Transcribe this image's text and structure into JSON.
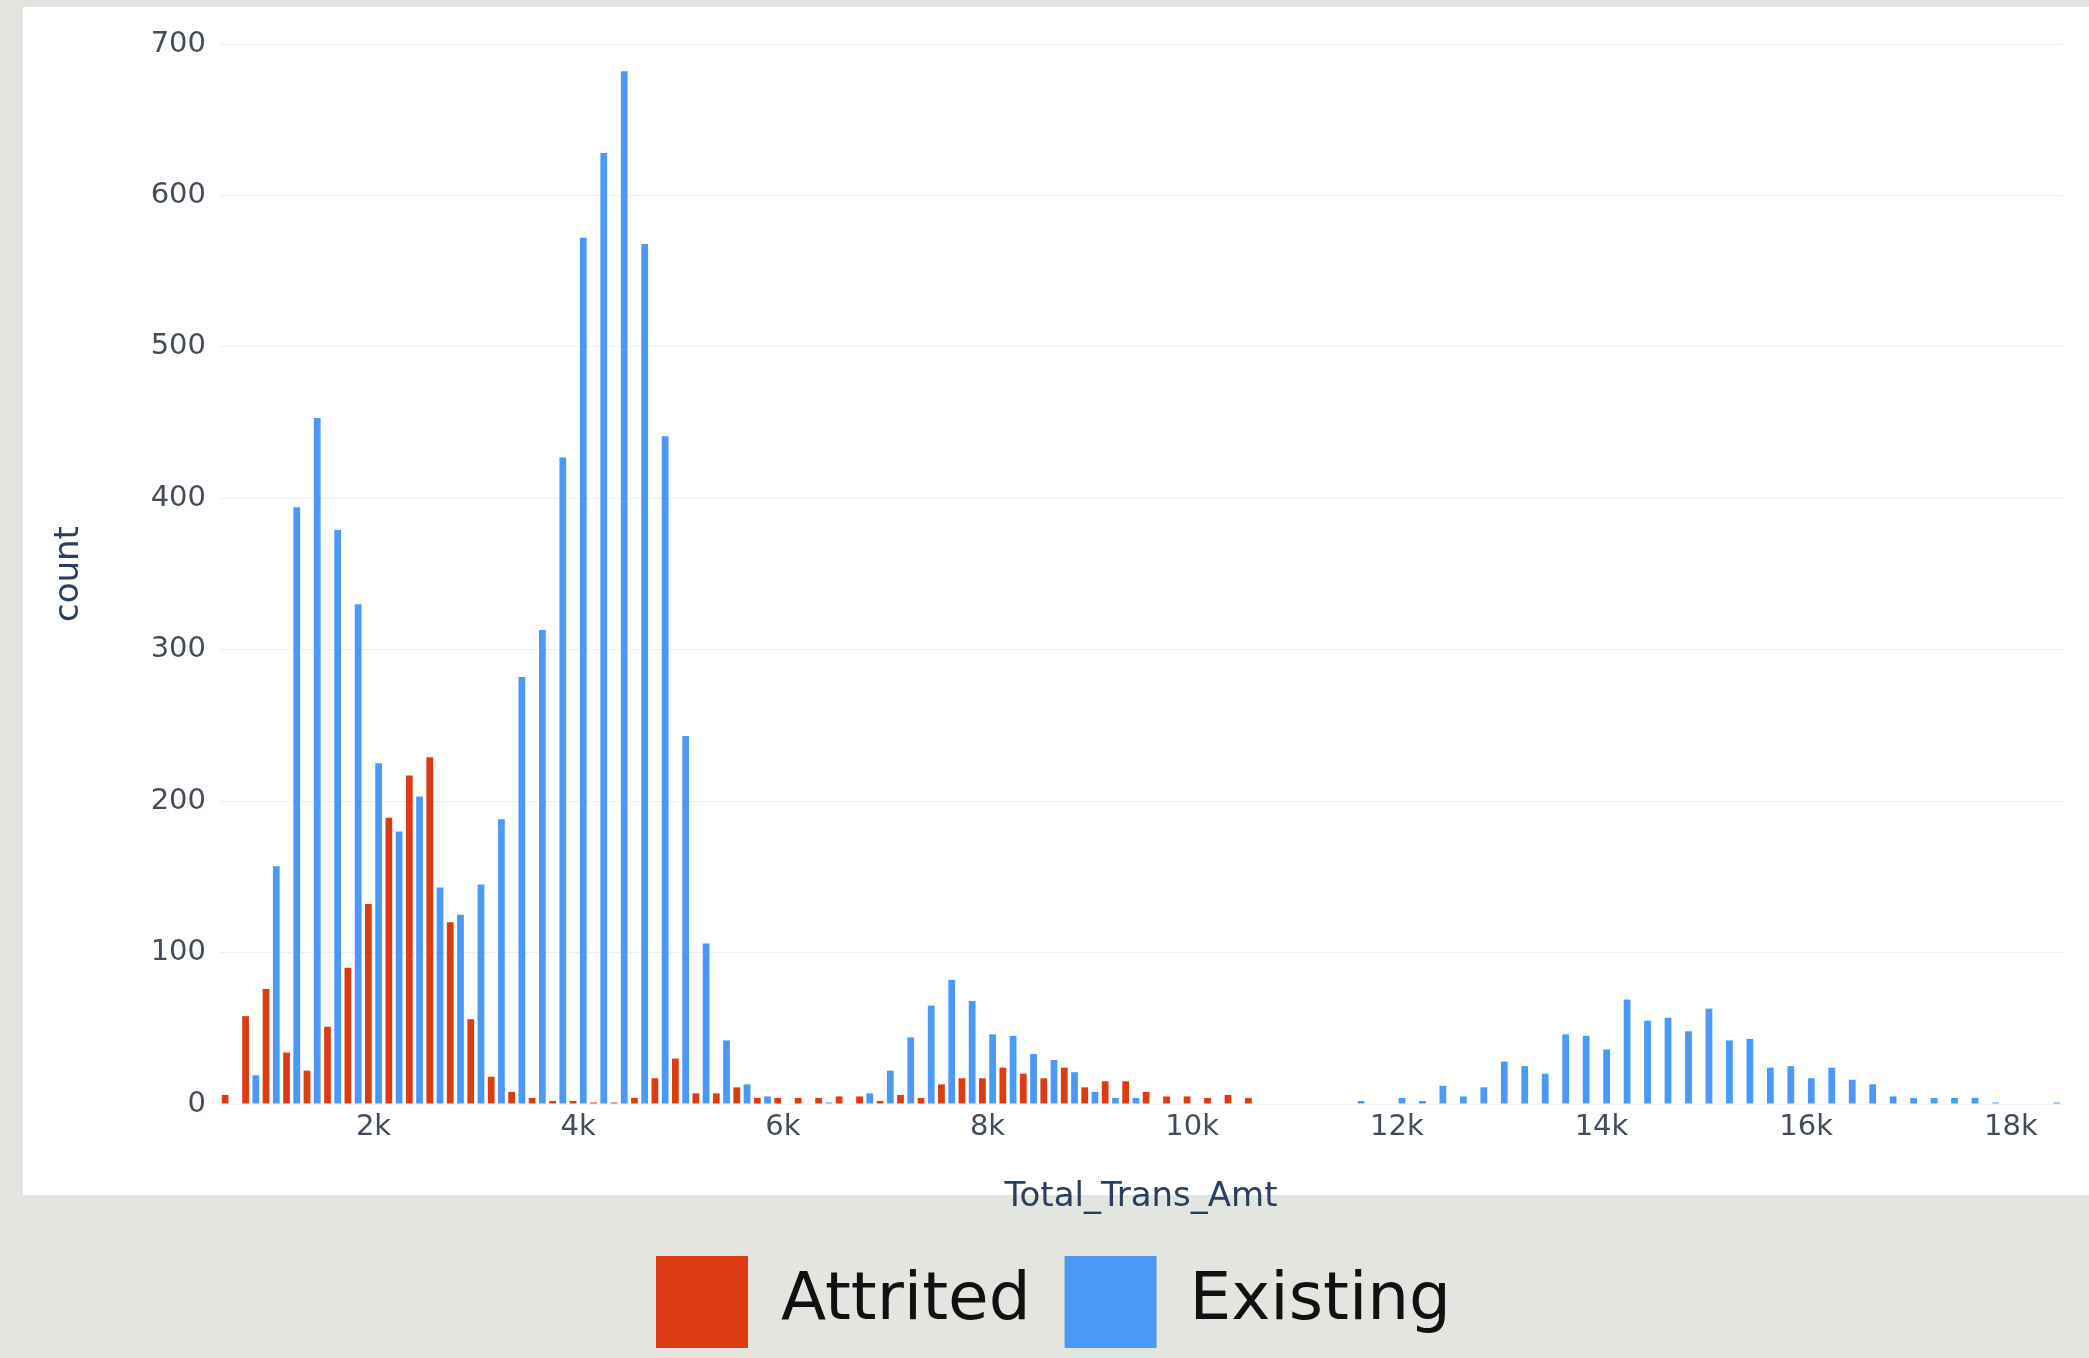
{
  "chart_data": {
    "type": "histogram",
    "xlabel": "Total_Trans_Amt",
    "ylabel": "count",
    "bins": [
      500,
      700,
      900,
      1100,
      1300,
      1500,
      1700,
      1900,
      2100,
      2300,
      2500,
      2700,
      2900,
      3100,
      3300,
      3500,
      3700,
      3900,
      4100,
      4300,
      4500,
      4700,
      4900,
      5100,
      5300,
      5500,
      5700,
      5900,
      6100,
      6300,
      6500,
      6700,
      6900,
      7100,
      7300,
      7500,
      7700,
      7900,
      8100,
      8300,
      8500,
      8700,
      8900,
      9100,
      9300,
      9500,
      9700,
      9900,
      10100,
      10300,
      10500,
      10700,
      10900,
      11100,
      11300,
      11500,
      11700,
      11900,
      12100,
      12300,
      12500,
      12700,
      12900,
      13100,
      13300,
      13500,
      13700,
      13900,
      14100,
      14300,
      14500,
      14700,
      14900,
      15100,
      15300,
      15500,
      15700,
      15900,
      16100,
      16300,
      16500,
      16700,
      16900,
      17100,
      17300,
      17500,
      17700,
      17900,
      18100,
      18300,
      18500
    ],
    "series": [
      {
        "name": "Attrited",
        "color": "#dd3b12",
        "values": [
          6,
          58,
          76,
          34,
          22,
          51,
          90,
          132,
          189,
          217,
          229,
          120,
          56,
          18,
          8,
          4,
          2,
          2,
          1,
          1,
          4,
          17,
          30,
          7,
          7,
          11,
          4,
          4,
          4,
          4,
          5,
          5,
          2,
          6,
          4,
          13,
          17,
          17,
          24,
          20,
          17,
          24,
          11,
          15,
          15,
          8,
          5,
          5,
          4,
          6,
          4,
          0,
          0,
          0,
          0,
          0,
          0,
          0,
          0,
          0,
          0,
          0,
          0,
          0,
          0,
          0,
          0,
          0,
          0,
          0,
          0,
          0,
          0,
          0,
          0,
          0,
          0,
          0,
          0,
          0,
          0,
          0,
          0,
          0,
          0,
          0,
          0,
          0,
          0,
          0
        ]
      },
      {
        "name": "Existing",
        "color": "#4a98f7",
        "values": [
          0,
          19,
          157,
          394,
          453,
          379,
          330,
          225,
          180,
          203,
          143,
          125,
          145,
          188,
          282,
          313,
          427,
          572,
          628,
          682,
          568,
          441,
          243,
          106,
          42,
          13,
          5,
          0,
          0,
          1,
          0,
          7,
          22,
          44,
          65,
          82,
          68,
          46,
          45,
          33,
          29,
          21,
          8,
          4,
          4,
          0,
          0,
          0,
          0,
          0,
          0,
          0,
          0,
          0,
          0,
          2,
          0,
          4,
          2,
          12,
          5,
          11,
          28,
          25,
          20,
          46,
          45,
          36,
          69,
          55,
          57,
          48,
          63,
          42,
          43,
          24,
          25,
          17,
          24,
          16,
          13,
          5,
          4,
          4,
          4,
          4,
          1,
          0,
          0,
          1
        ]
      }
    ],
    "xlim": [
      500,
      18500
    ],
    "ylim": [
      0,
      700
    ],
    "xticks": [
      {
        "value": 2000,
        "label": "2k"
      },
      {
        "value": 4000,
        "label": "4k"
      },
      {
        "value": 6000,
        "label": "6k"
      },
      {
        "value": 8000,
        "label": "8k"
      },
      {
        "value": 10000,
        "label": "10k"
      },
      {
        "value": 12000,
        "label": "12k"
      },
      {
        "value": 14000,
        "label": "14k"
      },
      {
        "value": 16000,
        "label": "16k"
      },
      {
        "value": 18000,
        "label": "18k"
      }
    ],
    "yticks": [
      0,
      100,
      200,
      300,
      400,
      500,
      600,
      700
    ],
    "grid": "y",
    "legend": "bottom"
  }
}
